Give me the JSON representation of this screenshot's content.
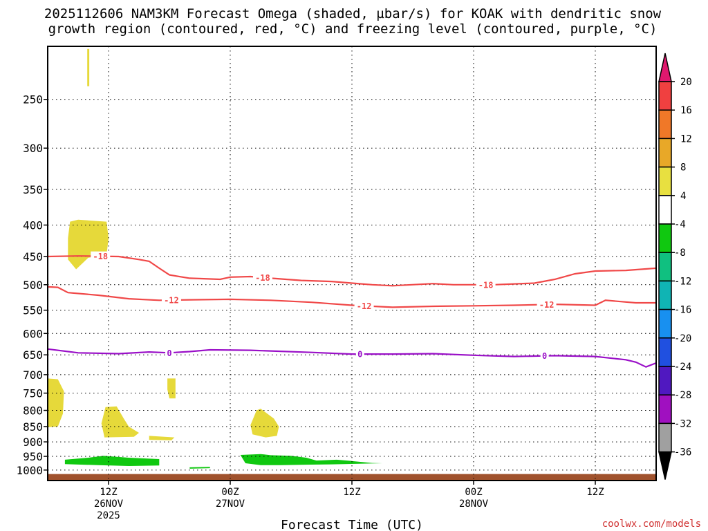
{
  "chart_data": {
    "type": "heatmap",
    "title_lines": [
      "2025112606 NAM3KM Forecast Omega (shaded, µbar/s) for KOAK with dendritic snow",
      "growth region (contoured, red, °C) and freezing level (contoured, purple, °C)"
    ],
    "xlabel": "Forecast Time (UTC)",
    "ylabel": "",
    "x_range_hours": [
      0,
      60
    ],
    "y_axis": {
      "scale": "log",
      "reversed": true,
      "range_mb": [
        205,
        1040
      ]
    },
    "y_ticks": [
      250,
      300,
      350,
      400,
      450,
      500,
      550,
      600,
      650,
      700,
      750,
      800,
      850,
      900,
      950,
      1000
    ],
    "x_ticks": [
      {
        "hour": 6,
        "lines": [
          "12Z",
          "26NOV",
          "2025"
        ]
      },
      {
        "hour": 18,
        "lines": [
          "00Z",
          "27NOV"
        ]
      },
      {
        "hour": 30,
        "lines": [
          "12Z"
        ]
      },
      {
        "hour": 42,
        "lines": [
          "00Z",
          "28NOV"
        ]
      },
      {
        "hour": 54,
        "lines": [
          "12Z"
        ]
      }
    ],
    "grid": true,
    "colorbar": {
      "levels": [
        "20",
        "16",
        "12",
        "8",
        "4",
        "-4",
        "-8",
        "-12",
        "-16",
        "-20",
        "-24",
        "-28",
        "-32",
        "-36"
      ],
      "colors": [
        "#e0186e",
        "#f04040",
        "#f07828",
        "#e8a828",
        "#e8e040",
        "#ffffff",
        "#10c810",
        "#10c080",
        "#10b4b4",
        "#1890f0",
        "#2050e0",
        "#5018c0",
        "#a010c0",
        "#a0a0a0",
        "#000000"
      ]
    },
    "omega_regions": [
      {
        "sign": "positive",
        "color": "#e6d93a",
        "points": [
          [
            3.9,
            207
          ],
          [
            4.1,
            207
          ],
          [
            4.1,
            238
          ],
          [
            3.9,
            238
          ]
        ]
      },
      {
        "sign": "positive",
        "color": "#e6d93a",
        "points": [
          [
            2.2,
            395
          ],
          [
            3.0,
            392
          ],
          [
            5.8,
            395
          ],
          [
            6.0,
            420
          ],
          [
            5.8,
            448
          ],
          [
            4.0,
            452
          ],
          [
            2.8,
            472
          ],
          [
            2.0,
            455
          ],
          [
            2.0,
            420
          ]
        ]
      },
      {
        "sign": "positive",
        "color": "#e6d93a",
        "points": [
          [
            0.0,
            710
          ],
          [
            1.0,
            712
          ],
          [
            1.6,
            745
          ],
          [
            1.5,
            810
          ],
          [
            1.0,
            850
          ],
          [
            0.0,
            852
          ]
        ]
      },
      {
        "sign": "positive",
        "color": "#e6d93a",
        "points": [
          [
            11.8,
            710
          ],
          [
            12.6,
            710
          ],
          [
            12.6,
            765
          ],
          [
            12.0,
            765
          ],
          [
            11.8,
            740
          ]
        ]
      },
      {
        "sign": "positive",
        "color": "#e6d93a",
        "points": [
          [
            5.7,
            790
          ],
          [
            6.8,
            788
          ],
          [
            7.5,
            825
          ],
          [
            8.0,
            850
          ],
          [
            9.0,
            870
          ],
          [
            8.5,
            883
          ],
          [
            5.6,
            885
          ],
          [
            5.3,
            840
          ]
        ]
      },
      {
        "sign": "positive",
        "color": "#e6d93a",
        "points": [
          [
            10.0,
            880
          ],
          [
            12.5,
            885
          ],
          [
            12.2,
            895
          ],
          [
            10.0,
            893
          ]
        ]
      },
      {
        "sign": "positive",
        "color": "#e6d93a",
        "points": [
          [
            20.6,
            800
          ],
          [
            21.0,
            795
          ],
          [
            22.3,
            825
          ],
          [
            22.8,
            850
          ],
          [
            22.6,
            880
          ],
          [
            21.5,
            885
          ],
          [
            20.2,
            875
          ],
          [
            20.0,
            845
          ]
        ]
      },
      {
        "sign": "negative",
        "color": "#10c810",
        "points": [
          [
            1.7,
            962
          ],
          [
            4.0,
            955
          ],
          [
            5.5,
            948
          ],
          [
            8.0,
            955
          ],
          [
            11.0,
            960
          ],
          [
            11.0,
            983
          ],
          [
            8.0,
            985
          ],
          [
            5.0,
            982
          ],
          [
            1.7,
            978
          ]
        ]
      },
      {
        "sign": "negative",
        "color": "#10c810",
        "points": [
          [
            14.0,
            990
          ],
          [
            16.0,
            988
          ],
          [
            16.0,
            993
          ],
          [
            14.0,
            995
          ]
        ]
      },
      {
        "sign": "negative",
        "color": "#10c810",
        "points": [
          [
            19.0,
            945
          ],
          [
            21.0,
            942
          ],
          [
            22.0,
            946
          ],
          [
            24.0,
            948
          ],
          [
            25.5,
            955
          ],
          [
            26.5,
            965
          ],
          [
            28.5,
            962
          ],
          [
            29.5,
            965
          ],
          [
            32.0,
            974
          ],
          [
            33.0,
            975
          ],
          [
            28.0,
            979
          ],
          [
            26.0,
            980
          ],
          [
            23.0,
            982
          ],
          [
            21.0,
            982
          ],
          [
            19.5,
            975
          ]
        ]
      }
    ],
    "ground": {
      "color": "#a0522d",
      "top_mb": 1015
    },
    "contours": [
      {
        "level": "-18",
        "color": "#f04848",
        "label_x": [
          5.2,
          21.2,
          43.2
        ],
        "points": [
          [
            0,
            450
          ],
          [
            3,
            449
          ],
          [
            7,
            450
          ],
          [
            9,
            455
          ],
          [
            10,
            458
          ],
          [
            11,
            470
          ],
          [
            12,
            482
          ],
          [
            14,
            488
          ],
          [
            17,
            490
          ],
          [
            18,
            486
          ],
          [
            20,
            485
          ],
          [
            22,
            488
          ],
          [
            25,
            492
          ],
          [
            28,
            494
          ],
          [
            30,
            497
          ],
          [
            32,
            500
          ],
          [
            34,
            502
          ],
          [
            38,
            498
          ],
          [
            40,
            500
          ],
          [
            44,
            500
          ],
          [
            48,
            497
          ],
          [
            50,
            490
          ],
          [
            52,
            480
          ],
          [
            54,
            475
          ],
          [
            57,
            474
          ],
          [
            60,
            470
          ]
        ]
      },
      {
        "level": "-12",
        "color": "#f04848",
        "label_x": [
          12.2,
          31.2,
          49.2
        ],
        "points": [
          [
            0,
            504
          ],
          [
            1,
            505
          ],
          [
            2,
            515
          ],
          [
            5,
            520
          ],
          [
            8,
            527
          ],
          [
            11,
            530
          ],
          [
            14,
            529
          ],
          [
            18,
            528
          ],
          [
            22,
            530
          ],
          [
            26,
            534
          ],
          [
            30,
            540
          ],
          [
            34,
            544
          ],
          [
            38,
            542
          ],
          [
            42,
            541
          ],
          [
            46,
            540
          ],
          [
            50,
            538
          ],
          [
            54,
            540
          ],
          [
            55,
            530
          ],
          [
            58,
            535
          ],
          [
            60,
            535
          ]
        ]
      },
      {
        "level": "0",
        "color": "#9a10c8",
        "label_x": [
          12.0,
          30.8,
          49.0
        ],
        "points": [
          [
            0,
            636
          ],
          [
            3,
            645
          ],
          [
            7,
            647
          ],
          [
            10,
            643
          ],
          [
            12,
            645
          ],
          [
            14,
            642
          ],
          [
            16,
            638
          ],
          [
            20,
            639
          ],
          [
            26,
            644
          ],
          [
            30,
            648
          ],
          [
            34,
            648
          ],
          [
            38,
            647
          ],
          [
            42,
            651
          ],
          [
            46,
            654
          ],
          [
            50,
            652
          ],
          [
            54,
            654
          ],
          [
            57,
            662
          ],
          [
            58,
            668
          ],
          [
            59,
            680
          ],
          [
            60,
            670
          ]
        ]
      }
    ]
  },
  "credit": "coolwx.com/models"
}
